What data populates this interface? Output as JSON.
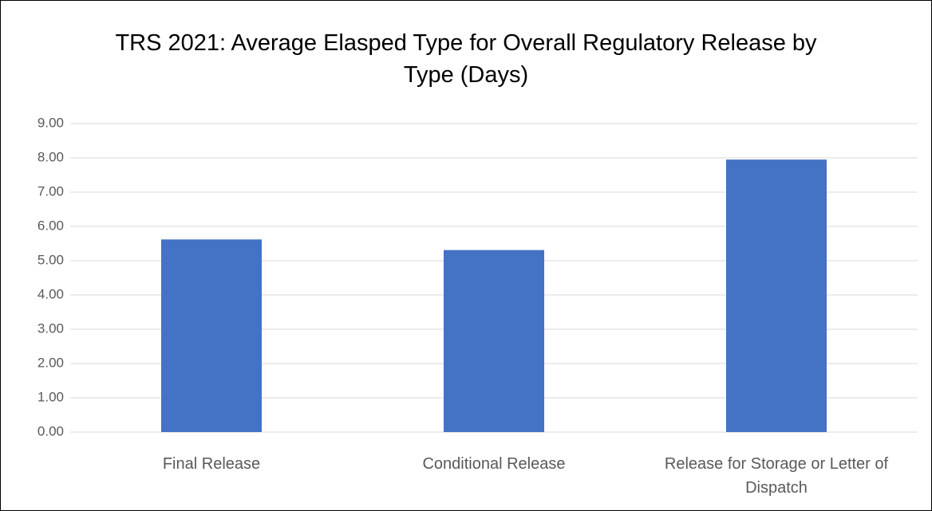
{
  "chart_data": {
    "type": "bar",
    "title": "TRS 2021: Average Elasped Type for Overall Regulatory Release by Type (Days)",
    "categories": [
      "Final Release",
      "Conditional Release",
      "Release for Storage or Letter of Dispatch"
    ],
    "values": [
      5.62,
      5.31,
      7.95
    ],
    "color": "#4472c4",
    "ylim": [
      0,
      9
    ],
    "yticks": [
      {
        "value": 0,
        "label": "0.00"
      },
      {
        "value": 1,
        "label": "1.00"
      },
      {
        "value": 2,
        "label": "2.00"
      },
      {
        "value": 3,
        "label": "3.00"
      },
      {
        "value": 4,
        "label": "4.00"
      },
      {
        "value": 5,
        "label": "5.00"
      },
      {
        "value": 6,
        "label": "6.00"
      },
      {
        "value": 7,
        "label": "7.00"
      },
      {
        "value": 8,
        "label": "8.00"
      },
      {
        "value": 9,
        "label": "9.00"
      }
    ],
    "grid": true
  }
}
